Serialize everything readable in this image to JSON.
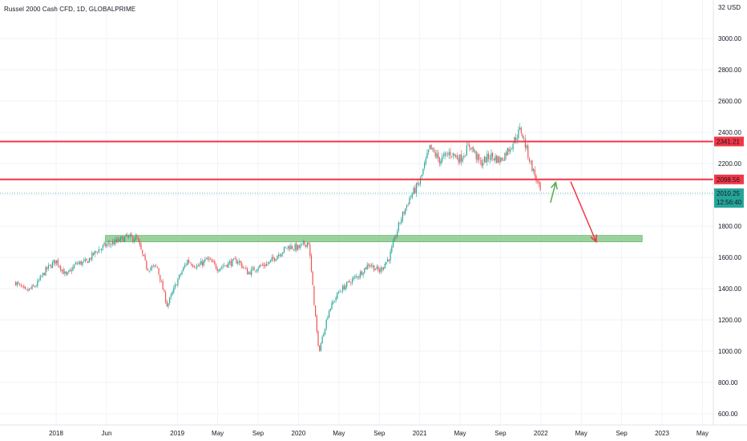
{
  "title": "Russel 2000 Cash CFD, 1D, GLOBALPRIME",
  "currency_label": "32 USD",
  "colors": {
    "up": "#26a69a",
    "down": "#ef5350",
    "resistance": "#f23645",
    "support_zone": "#81c784",
    "last_price": "#26a69a",
    "arrow_up": "#4caf50",
    "arrow_down": "#f23645"
  },
  "chart_data": {
    "type": "candlestick",
    "title": "Russel 2000 Cash CFD, 1D, GLOBALPRIME",
    "y_axis": {
      "ticks": [
        "3000.00",
        "2800.00",
        "2600.00",
        "2400.00",
        "2200.00",
        "2000.00",
        "1800.00",
        "1600.00",
        "1400.00",
        "1200.00",
        "1000.00",
        "800.00",
        "600.00"
      ],
      "range": [
        520,
        3240
      ],
      "scale": "linear"
    },
    "x_axis": {
      "ticks": [
        "2018",
        "Jun",
        "2019",
        "May",
        "Sep",
        "2020",
        "May",
        "Sep",
        "2021",
        "May",
        "Sep",
        "2022",
        "May",
        "Sep",
        "2023",
        "May"
      ],
      "tick_dates": [
        "2018-01",
        "2018-06",
        "2019-01",
        "2019-05",
        "2019-09",
        "2020-01",
        "2020-05",
        "2020-09",
        "2021-01",
        "2021-05",
        "2021-09",
        "2022-01",
        "2022-05",
        "2022-09",
        "2023-01",
        "2023-05"
      ]
    },
    "price_path": [
      {
        "date": "2017-09",
        "price": 1440
      },
      {
        "date": "2017-10",
        "price": 1380
      },
      {
        "date": "2017-11",
        "price": 1420
      },
      {
        "date": "2017-12",
        "price": 1520
      },
      {
        "date": "2018-01",
        "price": 1580
      },
      {
        "date": "2018-02",
        "price": 1480
      },
      {
        "date": "2018-03",
        "price": 1560
      },
      {
        "date": "2018-04",
        "price": 1570
      },
      {
        "date": "2018-05",
        "price": 1640
      },
      {
        "date": "2018-06",
        "price": 1680
      },
      {
        "date": "2018-07",
        "price": 1700
      },
      {
        "date": "2018-08",
        "price": 1730
      },
      {
        "date": "2018-09",
        "price": 1720
      },
      {
        "date": "2018-10",
        "price": 1530
      },
      {
        "date": "2018-11",
        "price": 1540
      },
      {
        "date": "2018-12",
        "price": 1290
      },
      {
        "date": "2019-01",
        "price": 1450
      },
      {
        "date": "2019-02",
        "price": 1580
      },
      {
        "date": "2019-03",
        "price": 1540
      },
      {
        "date": "2019-04",
        "price": 1590
      },
      {
        "date": "2019-05",
        "price": 1530
      },
      {
        "date": "2019-06",
        "price": 1560
      },
      {
        "date": "2019-07",
        "price": 1580
      },
      {
        "date": "2019-08",
        "price": 1500
      },
      {
        "date": "2019-09",
        "price": 1540
      },
      {
        "date": "2019-10",
        "price": 1560
      },
      {
        "date": "2019-11",
        "price": 1620
      },
      {
        "date": "2019-12",
        "price": 1670
      },
      {
        "date": "2020-01",
        "price": 1660
      },
      {
        "date": "2020-02",
        "price": 1700
      },
      {
        "date": "2020-03",
        "price": 990
      },
      {
        "date": "2020-04",
        "price": 1260
      },
      {
        "date": "2020-05",
        "price": 1380
      },
      {
        "date": "2020-06",
        "price": 1440
      },
      {
        "date": "2020-07",
        "price": 1490
      },
      {
        "date": "2020-08",
        "price": 1560
      },
      {
        "date": "2020-09",
        "price": 1510
      },
      {
        "date": "2020-10",
        "price": 1600
      },
      {
        "date": "2020-11",
        "price": 1820
      },
      {
        "date": "2020-12",
        "price": 1980
      },
      {
        "date": "2021-01",
        "price": 2080
      },
      {
        "date": "2021-02",
        "price": 2300
      },
      {
        "date": "2021-03",
        "price": 2220
      },
      {
        "date": "2021-04",
        "price": 2270
      },
      {
        "date": "2021-05",
        "price": 2230
      },
      {
        "date": "2021-06",
        "price": 2320
      },
      {
        "date": "2021-07",
        "price": 2200
      },
      {
        "date": "2021-08",
        "price": 2250
      },
      {
        "date": "2021-09",
        "price": 2220
      },
      {
        "date": "2021-10",
        "price": 2310
      },
      {
        "date": "2021-11",
        "price": 2420
      },
      {
        "date": "2021-12",
        "price": 2200
      },
      {
        "date": "2022-01",
        "price": 2010
      }
    ],
    "resistance_lines": [
      {
        "label": "2341.21",
        "value": 2341.21
      },
      {
        "label": "2098.56",
        "value": 2098.56
      }
    ],
    "last_price": {
      "value": "2010.25",
      "countdown": "12:56:40",
      "price": 2010.25
    },
    "support_zone": {
      "low": 1700,
      "high": 1740,
      "start": "2018-07",
      "end": "2022-10"
    },
    "annotations": [
      {
        "type": "arrow",
        "direction": "up",
        "color": "green",
        "from": {
          "date": "2022-01",
          "price": 1950
        },
        "to": {
          "date": "2022-02",
          "price": 2080
        }
      },
      {
        "type": "arrow",
        "direction": "down",
        "color": "red",
        "from": {
          "date": "2022-03",
          "price": 2085
        },
        "to": {
          "date": "2022-06",
          "price": 1700
        }
      }
    ],
    "grid": true,
    "legend": "none"
  }
}
